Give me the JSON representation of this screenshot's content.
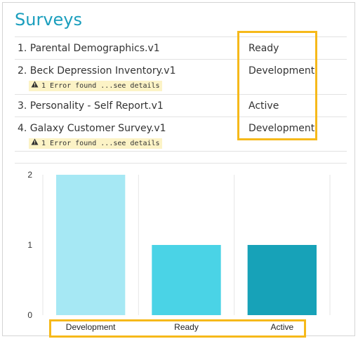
{
  "panel": {
    "title": "Surveys"
  },
  "surveys": [
    {
      "name": "1. Parental Demographics.v1",
      "status": "Ready",
      "error": ""
    },
    {
      "name": "2. Beck Depression Inventory.v1",
      "status": "Development",
      "error": "1 Error found ...see details"
    },
    {
      "name": "3. Personality - Self Report.v1",
      "status": "Active",
      "error": ""
    },
    {
      "name": "4. Galaxy Customer Survey.v1",
      "status": "Development",
      "error": "1 Error found ...see details"
    }
  ],
  "icons": {
    "error": "warning-triangle-icon"
  },
  "colors": {
    "title": "#1a9ebd",
    "highlight": "#f6b91a",
    "error_badge_bg": "#fcf3c6",
    "series": [
      "#a6e8f4",
      "#4ad3e6",
      "#17a2b8"
    ]
  },
  "chart_data": {
    "type": "bar",
    "categories": [
      "Development",
      "Ready",
      "Active"
    ],
    "values": [
      2,
      1,
      1
    ],
    "ylim": [
      0,
      2
    ],
    "yticks": [
      0,
      1,
      2
    ],
    "grid": true,
    "title": "",
    "xlabel": "",
    "ylabel": ""
  }
}
